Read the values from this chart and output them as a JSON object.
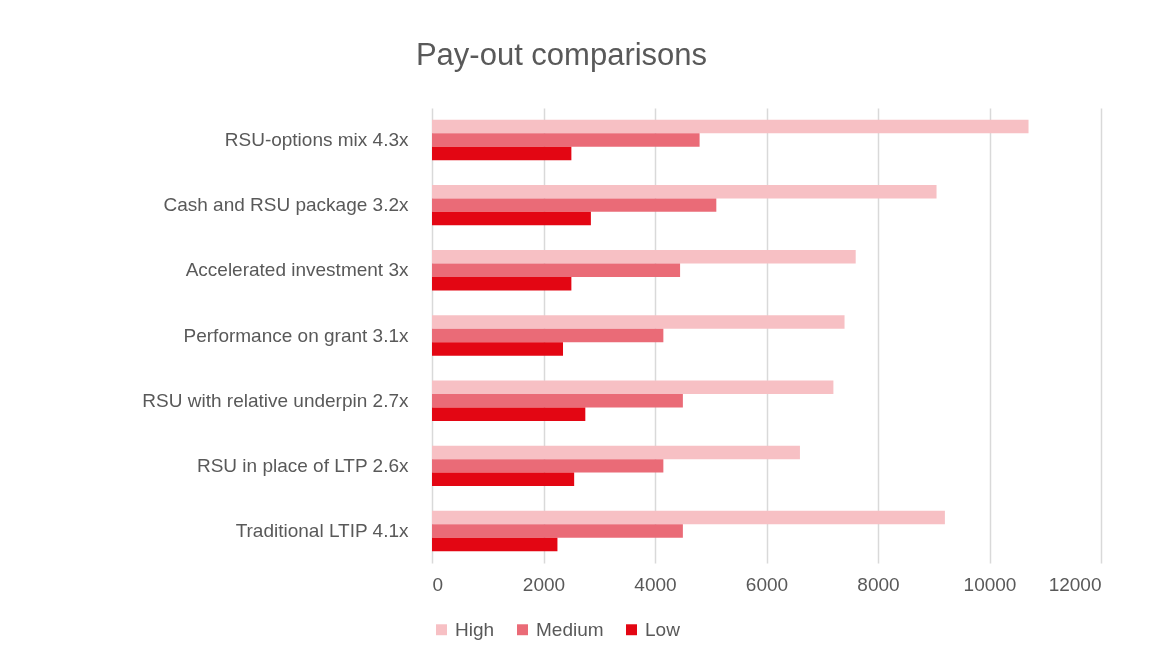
{
  "chart_data": {
    "type": "bar",
    "orientation": "horizontal",
    "title": "Pay-out comparisons",
    "categories": [
      "RSU-options mix 4.3x",
      "Cash and RSU package 3.2x",
      "Accelerated investment 3x",
      "Performance on grant 3.1x",
      "RSU with relative underpin 2.7x",
      "RSU in place of LTP 2.6x",
      "Traditional LTIP 4.1x"
    ],
    "series": [
      {
        "name": "High",
        "color": "#f7c0c4",
        "values": [
          10700,
          9050,
          7600,
          7400,
          7200,
          6600,
          9200
        ]
      },
      {
        "name": "Medium",
        "color": "#ea6b77",
        "values": [
          4800,
          5100,
          4450,
          4150,
          4500,
          4150,
          4500
        ]
      },
      {
        "name": "Low",
        "color": "#e30613",
        "values": [
          2500,
          2850,
          2500,
          2350,
          2750,
          2550,
          2250
        ]
      }
    ],
    "xlim": [
      0,
      12000
    ],
    "xticks": [
      0,
      2000,
      4000,
      6000,
      8000,
      10000,
      12000
    ],
    "grid": "x",
    "legend": "bottom"
  }
}
